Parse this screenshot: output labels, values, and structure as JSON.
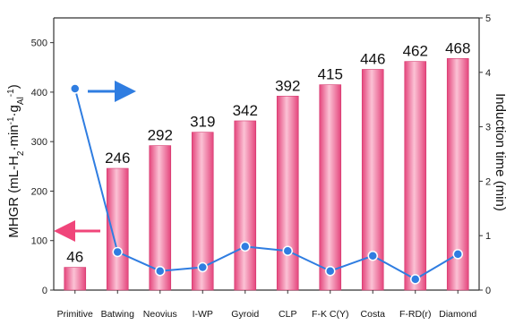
{
  "chart_data": {
    "type": "bar",
    "categories": [
      "Primitive",
      "Batwing",
      "Neovius",
      "I-WP",
      "Gyroid",
      "CLP",
      "F-K C(Y)",
      "Costa",
      "F-RD(r)",
      "Diamond"
    ],
    "series": [
      {
        "values": [
          46,
          246,
          292,
          319,
          342,
          392,
          415,
          446,
          462,
          468
        ],
        "data_labels": [
          "46",
          "246",
          "292",
          "319",
          "342",
          "392",
          "415",
          "446",
          "462",
          "468"
        ],
        "axis": "left",
        "chart_type": "bar",
        "color": "#f06a97"
      },
      {
        "values": [
          3.7,
          0.7,
          0.35,
          0.42,
          0.8,
          0.72,
          0.35,
          0.63,
          0.2,
          0.66
        ],
        "axis": "right",
        "chart_type": "line",
        "color": "#2f7de1"
      }
    ],
    "ylabel_left": "MHGR (mL-H₂·min⁻¹·g_Al⁻¹)",
    "ylabel_right": "Induction time (min)",
    "ylim_left": [
      0,
      550
    ],
    "ylim_right": [
      0,
      5
    ],
    "yticks_left": [
      "0",
      "100",
      "200",
      "300",
      "400",
      "500"
    ],
    "yticks_right": [
      "0",
      "1",
      "2",
      "3",
      "4",
      "5"
    ],
    "grid": false,
    "annotations": [
      {
        "type": "arrow",
        "direction": "right",
        "color": "#2f7de1",
        "meaning": "line series uses right axis"
      },
      {
        "type": "arrow",
        "direction": "left",
        "color": "#f0457a",
        "meaning": "bar series uses left axis"
      }
    ]
  }
}
